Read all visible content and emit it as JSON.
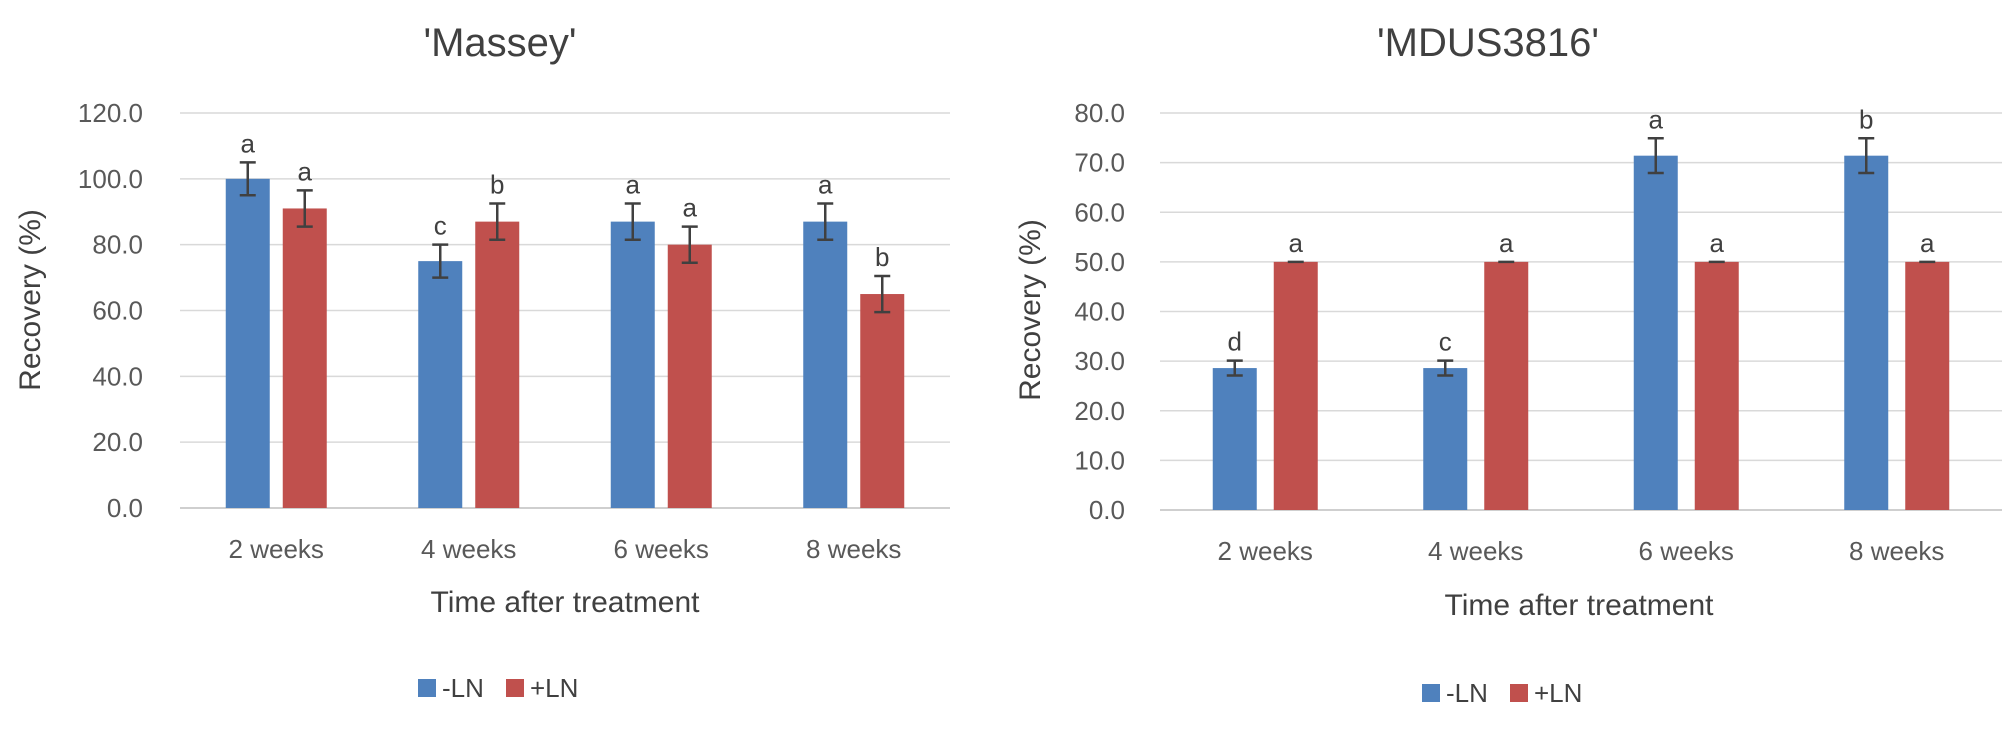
{
  "chart_data": [
    {
      "type": "bar",
      "title": "'Massey'",
      "xlabel": "Time after treatment",
      "ylabel": "Recovery (%)",
      "ylim": [
        0,
        120
      ],
      "yticks": [
        "0.0",
        "20.0",
        "40.0",
        "60.0",
        "80.0",
        "100.0",
        "120.0"
      ],
      "ytick_values": [
        0,
        20,
        40,
        60,
        80,
        100,
        120
      ],
      "grid": true,
      "legend_position": "bottom",
      "categories": [
        "2 weeks",
        "4 weeks",
        "6 weeks",
        "8 weeks"
      ],
      "series": [
        {
          "name": "-LN",
          "color": "#4F81BD",
          "values": [
            100,
            75,
            87,
            87
          ],
          "errors": [
            5,
            5,
            5.5,
            5.5
          ],
          "letters": [
            "a",
            "c",
            "a",
            "a"
          ]
        },
        {
          "name": "+LN",
          "color": "#C0504D",
          "values": [
            91,
            87,
            80,
            65
          ],
          "errors": [
            5.5,
            5.5,
            5.5,
            5.5
          ],
          "letters": [
            "a",
            "b",
            "a",
            "b"
          ]
        }
      ]
    },
    {
      "type": "bar",
      "title": "'MDUS3816'",
      "xlabel": "Time after treatment",
      "ylabel": "Recovery (%)",
      "ylim": [
        0,
        80
      ],
      "yticks": [
        "0.0",
        "10.0",
        "20.0",
        "30.0",
        "40.0",
        "50.0",
        "60.0",
        "70.0",
        "80.0"
      ],
      "ytick_values": [
        0,
        10,
        20,
        30,
        40,
        50,
        60,
        70,
        80
      ],
      "grid": true,
      "legend_position": "bottom",
      "categories": [
        "2 weeks",
        "4 weeks",
        "6 weeks",
        "8 weeks"
      ],
      "series": [
        {
          "name": "-LN",
          "color": "#4F81BD",
          "values": [
            28.6,
            28.6,
            71.4,
            71.4
          ],
          "errors": [
            1.5,
            1.5,
            3.5,
            3.5
          ],
          "letters": [
            "d",
            "c",
            "a",
            "b"
          ]
        },
        {
          "name": "+LN",
          "color": "#C0504D",
          "values": [
            50,
            50,
            50,
            50
          ],
          "errors": [
            0,
            0,
            0,
            0
          ],
          "letters": [
            "a",
            "a",
            "a",
            "a"
          ]
        }
      ]
    }
  ]
}
